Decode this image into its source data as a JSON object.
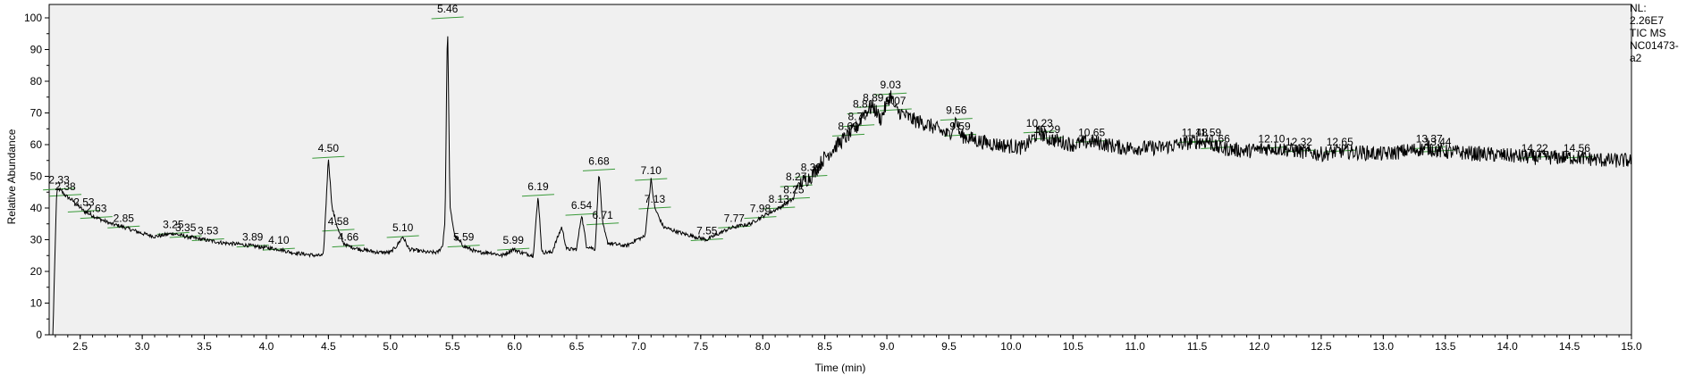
{
  "header": {
    "nl_label": "NL:",
    "nl_value": "2.26E7",
    "scan_filter": "TIC  MS",
    "sample_id": "NC01473-",
    "sample_suffix": "a2"
  },
  "chart_data": {
    "type": "line",
    "title": "",
    "xlabel": "Time (min)",
    "ylabel": "Relative Abundance",
    "xlim": [
      2.25,
      15.0
    ],
    "ylim": [
      0,
      100
    ],
    "grid": false,
    "x_ticks": [
      "2.5",
      "3.0",
      "3.5",
      "4.0",
      "4.5",
      "5.0",
      "5.5",
      "6.0",
      "6.5",
      "7.0",
      "7.5",
      "8.0",
      "8.5",
      "9.0",
      "9.5",
      "10.0",
      "10.5",
      "11.0",
      "11.5",
      "12.0",
      "12.5",
      "13.0",
      "13.5",
      "14.0",
      "14.5",
      "15.0"
    ],
    "y_ticks": [
      "0",
      "10",
      "20",
      "30",
      "40",
      "50",
      "60",
      "70",
      "80",
      "90",
      "100"
    ],
    "series": [
      {
        "points": [
          [
            2.25,
            0
          ],
          [
            2.28,
            0
          ],
          [
            2.31,
            45
          ],
          [
            2.33,
            46
          ],
          [
            2.38,
            44
          ],
          [
            2.45,
            42
          ],
          [
            2.53,
            39
          ],
          [
            2.63,
            37
          ],
          [
            2.75,
            35
          ],
          [
            2.85,
            34
          ],
          [
            3.0,
            32
          ],
          [
            3.1,
            31
          ],
          [
            3.25,
            32
          ],
          [
            3.35,
            31
          ],
          [
            3.5,
            30
          ],
          [
            3.65,
            29
          ],
          [
            3.8,
            28.5
          ],
          [
            3.89,
            28
          ],
          [
            4.0,
            27.5
          ],
          [
            4.1,
            27
          ],
          [
            4.2,
            26
          ],
          [
            4.3,
            25.5
          ],
          [
            4.4,
            25
          ],
          [
            4.46,
            25
          ],
          [
            4.5,
            56
          ],
          [
            4.53,
            40
          ],
          [
            4.58,
            33
          ],
          [
            4.62,
            29
          ],
          [
            4.66,
            28
          ],
          [
            4.75,
            27
          ],
          [
            4.9,
            26
          ],
          [
            5.0,
            26
          ],
          [
            5.05,
            28
          ],
          [
            5.1,
            31
          ],
          [
            5.15,
            27
          ],
          [
            5.3,
            26
          ],
          [
            5.38,
            26
          ],
          [
            5.42,
            28
          ],
          [
            5.44,
            36
          ],
          [
            5.46,
            100
          ],
          [
            5.48,
            40
          ],
          [
            5.52,
            31
          ],
          [
            5.59,
            28
          ],
          [
            5.7,
            26
          ],
          [
            5.8,
            26
          ],
          [
            5.9,
            25
          ],
          [
            5.99,
            27
          ],
          [
            6.05,
            26
          ],
          [
            6.15,
            25
          ],
          [
            6.19,
            44
          ],
          [
            6.22,
            26
          ],
          [
            6.3,
            26
          ],
          [
            6.38,
            34
          ],
          [
            6.42,
            27
          ],
          [
            6.5,
            27
          ],
          [
            6.54,
            38
          ],
          [
            6.58,
            28
          ],
          [
            6.65,
            27
          ],
          [
            6.68,
            52
          ],
          [
            6.71,
            35
          ],
          [
            6.75,
            29
          ],
          [
            6.9,
            28
          ],
          [
            6.98,
            30
          ],
          [
            7.05,
            31
          ],
          [
            7.1,
            49
          ],
          [
            7.13,
            40
          ],
          [
            7.2,
            34
          ],
          [
            7.35,
            32
          ],
          [
            7.45,
            31
          ],
          [
            7.55,
            30
          ],
          [
            7.7,
            33
          ],
          [
            7.77,
            34
          ],
          [
            7.9,
            35
          ],
          [
            7.98,
            37
          ],
          [
            8.13,
            40
          ],
          [
            8.25,
            43
          ],
          [
            8.27,
            47
          ],
          [
            8.39,
            50
          ],
          [
            8.5,
            56
          ],
          [
            8.6,
            60
          ],
          [
            8.69,
            63
          ],
          [
            8.77,
            66
          ],
          [
            8.81,
            70
          ],
          [
            8.89,
            72
          ],
          [
            8.95,
            68
          ],
          [
            9.03,
            76
          ],
          [
            9.07,
            71
          ],
          [
            9.2,
            68
          ],
          [
            9.35,
            66
          ],
          [
            9.5,
            63
          ],
          [
            9.56,
            68
          ],
          [
            9.59,
            63
          ],
          [
            9.75,
            61
          ],
          [
            9.9,
            60
          ],
          [
            10.1,
            59
          ],
          [
            10.23,
            64
          ],
          [
            10.29,
            62
          ],
          [
            10.5,
            60
          ],
          [
            10.65,
            61
          ],
          [
            10.9,
            59
          ],
          [
            11.2,
            59
          ],
          [
            11.48,
            61
          ],
          [
            11.59,
            61
          ],
          [
            11.66,
            59
          ],
          [
            11.9,
            58
          ],
          [
            12.1,
            59
          ],
          [
            12.32,
            58
          ],
          [
            12.5,
            57
          ],
          [
            12.65,
            58
          ],
          [
            13.0,
            57
          ],
          [
            13.37,
            59
          ],
          [
            13.44,
            58
          ],
          [
            13.8,
            57
          ],
          [
            14.22,
            56
          ],
          [
            14.56,
            56
          ],
          [
            14.8,
            55
          ],
          [
            15.0,
            55
          ]
        ]
      }
    ],
    "peak_labels": [
      {
        "rt": "2.33",
        "x": 2.33,
        "y": 46
      },
      {
        "rt": "2.38",
        "x": 2.38,
        "y": 44
      },
      {
        "rt": "2.53",
        "x": 2.53,
        "y": 39
      },
      {
        "rt": "2.63",
        "x": 2.63,
        "y": 37
      },
      {
        "rt": "2.85",
        "x": 2.85,
        "y": 34
      },
      {
        "rt": "3.25",
        "x": 3.25,
        "y": 32
      },
      {
        "rt": "3.35",
        "x": 3.35,
        "y": 31
      },
      {
        "rt": "3.53",
        "x": 3.53,
        "y": 30
      },
      {
        "rt": "3.89",
        "x": 3.89,
        "y": 28
      },
      {
        "rt": "4.10",
        "x": 4.1,
        "y": 27
      },
      {
        "rt": "4.50",
        "x": 4.5,
        "y": 56
      },
      {
        "rt": "4.58",
        "x": 4.58,
        "y": 33
      },
      {
        "rt": "4.66",
        "x": 4.66,
        "y": 28
      },
      {
        "rt": "5.10",
        "x": 5.1,
        "y": 31
      },
      {
        "rt": "5.46",
        "x": 5.46,
        "y": 100
      },
      {
        "rt": "5.59",
        "x": 5.59,
        "y": 28
      },
      {
        "rt": "5.99",
        "x": 5.99,
        "y": 27
      },
      {
        "rt": "6.19",
        "x": 6.19,
        "y": 44
      },
      {
        "rt": "6.54",
        "x": 6.54,
        "y": 38
      },
      {
        "rt": "6.68",
        "x": 6.68,
        "y": 52
      },
      {
        "rt": "6.71",
        "x": 6.71,
        "y": 35
      },
      {
        "rt": "7.10",
        "x": 7.1,
        "y": 49
      },
      {
        "rt": "7.13",
        "x": 7.13,
        "y": 40
      },
      {
        "rt": "7.55",
        "x": 7.55,
        "y": 30
      },
      {
        "rt": "7.77",
        "x": 7.77,
        "y": 34
      },
      {
        "rt": "7.98",
        "x": 7.98,
        "y": 37
      },
      {
        "rt": "8.13",
        "x": 8.13,
        "y": 40
      },
      {
        "rt": "8.25",
        "x": 8.25,
        "y": 43
      },
      {
        "rt": "8.27",
        "x": 8.27,
        "y": 47
      },
      {
        "rt": "8.39",
        "x": 8.39,
        "y": 50
      },
      {
        "rt": "8.69",
        "x": 8.69,
        "y": 63
      },
      {
        "rt": "8.77",
        "x": 8.77,
        "y": 66
      },
      {
        "rt": "8.81",
        "x": 8.81,
        "y": 70
      },
      {
        "rt": "8.89",
        "x": 8.89,
        "y": 72
      },
      {
        "rt": "9.03",
        "x": 9.03,
        "y": 76
      },
      {
        "rt": "9.07",
        "x": 9.07,
        "y": 71
      },
      {
        "rt": "9.56",
        "x": 9.56,
        "y": 68
      },
      {
        "rt": "9.59",
        "x": 9.59,
        "y": 63
      },
      {
        "rt": "10.23",
        "x": 10.23,
        "y": 64
      },
      {
        "rt": "10.29",
        "x": 10.29,
        "y": 62
      },
      {
        "rt": "10.65",
        "x": 10.65,
        "y": 61
      },
      {
        "rt": "11.48",
        "x": 11.48,
        "y": 61
      },
      {
        "rt": "11.59",
        "x": 11.59,
        "y": 61
      },
      {
        "rt": "11.66",
        "x": 11.66,
        "y": 59
      },
      {
        "rt": "12.10",
        "x": 12.1,
        "y": 59
      },
      {
        "rt": "12.32",
        "x": 12.32,
        "y": 58
      },
      {
        "rt": "12.65",
        "x": 12.65,
        "y": 58
      },
      {
        "rt": "13.37",
        "x": 13.37,
        "y": 59
      },
      {
        "rt": "13.44",
        "x": 13.44,
        "y": 58
      },
      {
        "rt": "14.22",
        "x": 14.22,
        "y": 56
      },
      {
        "rt": "14.56",
        "x": 14.56,
        "y": 56
      }
    ],
    "colors": {
      "trace": "#000000",
      "plot_background": "#f0f0f0",
      "integration_marks": "#3a9a3a",
      "axis": "#000000"
    }
  }
}
